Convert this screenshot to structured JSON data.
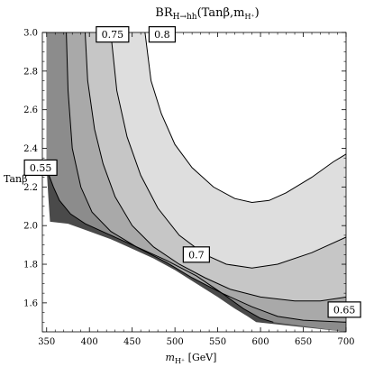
{
  "chart_data": {
    "type": "contour",
    "title_main": "BR",
    "title_sub": "H→hh",
    "title_args": "(Tanβ,m",
    "title_args_sub": "H⁺",
    "title_args_close": ")",
    "xlabel_main": "m",
    "xlabel_sub": "H⁺",
    "xlabel_unit": " [GeV]",
    "ylabel": "Tanβ",
    "xlim": [
      345,
      700
    ],
    "ylim": [
      1.45,
      3.0
    ],
    "x_ticks": [
      350,
      400,
      450,
      500,
      550,
      600,
      650,
      700
    ],
    "y_ticks": [
      1.6,
      1.8,
      2.0,
      2.2,
      2.4,
      2.6,
      2.8,
      3.0
    ],
    "x_tick_labels": [
      "350",
      "400",
      "450",
      "500",
      "550",
      "600",
      "650",
      "700"
    ],
    "y_tick_labels": [
      "1.6",
      "1.8",
      "2.0",
      "2.2",
      "2.4",
      "2.6",
      "2.8",
      "3.0"
    ],
    "contour_levels": [
      "0.55",
      "0.65",
      "0.7",
      "0.75",
      "0.8"
    ],
    "region_colors": {
      "darkest": "#4a4a4a",
      "dark": "#8c8c8c",
      "medium": "#a9a9a9",
      "light": "#c6c6c6",
      "lightest": "#dedede"
    },
    "contours": [
      {
        "level": "0.8",
        "points": [
          [
            465,
            3.0
          ],
          [
            472,
            2.75
          ],
          [
            484,
            2.58
          ],
          [
            500,
            2.42
          ],
          [
            520,
            2.3
          ],
          [
            545,
            2.2
          ],
          [
            570,
            2.14
          ],
          [
            590,
            2.12
          ],
          [
            610,
            2.13
          ],
          [
            630,
            2.17
          ],
          [
            660,
            2.25
          ],
          [
            685,
            2.33
          ],
          [
            700,
            2.37
          ]
        ]
      },
      {
        "level": "0.75",
        "points": [
          [
            425,
            3.0
          ],
          [
            432,
            2.7
          ],
          [
            444,
            2.46
          ],
          [
            460,
            2.26
          ],
          [
            480,
            2.09
          ],
          [
            505,
            1.95
          ],
          [
            535,
            1.85
          ],
          [
            560,
            1.8
          ],
          [
            590,
            1.78
          ],
          [
            620,
            1.8
          ],
          [
            660,
            1.86
          ],
          [
            700,
            1.94
          ]
        ]
      },
      {
        "level": "0.7",
        "points": [
          [
            395,
            3.0
          ],
          [
            398,
            2.75
          ],
          [
            406,
            2.5
          ],
          [
            416,
            2.32
          ],
          [
            430,
            2.15
          ],
          [
            450,
            2.0
          ],
          [
            475,
            1.89
          ],
          [
            505,
            1.8
          ],
          [
            535,
            1.73
          ],
          [
            565,
            1.67
          ],
          [
            600,
            1.63
          ],
          [
            640,
            1.61
          ],
          [
            670,
            1.61
          ],
          [
            700,
            1.63
          ]
        ]
      },
      {
        "level": "0.65",
        "points": [
          [
            373,
            3.0
          ],
          [
            375,
            2.7
          ],
          [
            380,
            2.4
          ],
          [
            390,
            2.2
          ],
          [
            403,
            2.07
          ],
          [
            425,
            1.97
          ],
          [
            455,
            1.89
          ],
          [
            490,
            1.81
          ],
          [
            520,
            1.73
          ],
          [
            555,
            1.65
          ],
          [
            590,
            1.58
          ],
          [
            620,
            1.53
          ],
          [
            650,
            1.51
          ],
          [
            700,
            1.5
          ]
        ]
      },
      {
        "level": "0.55",
        "points": [
          [
            352,
            2.27
          ],
          [
            358,
            2.2
          ],
          [
            365,
            2.13
          ],
          [
            378,
            2.06
          ],
          [
            395,
            2.01
          ],
          [
            420,
            1.96
          ],
          [
            450,
            1.9
          ],
          [
            490,
            1.82
          ],
          [
            525,
            1.74
          ],
          [
            555,
            1.65
          ],
          [
            580,
            1.57
          ],
          [
            600,
            1.52
          ],
          [
            615,
            1.5
          ]
        ]
      }
    ],
    "domain_edge": [
      [
        350,
        2.3
      ],
      [
        352,
        2.15
      ],
      [
        354,
        2.02
      ],
      [
        375,
        2.01
      ],
      [
        400,
        1.97
      ],
      [
        425,
        1.93
      ],
      [
        450,
        1.88
      ],
      [
        475,
        1.83
      ],
      [
        500,
        1.77
      ],
      [
        525,
        1.7
      ],
      [
        550,
        1.63
      ],
      [
        570,
        1.57
      ],
      [
        585,
        1.53
      ],
      [
        595,
        1.5
      ]
    ],
    "contour_labels": [
      {
        "text": "0.75",
        "x": 427,
        "y": 2.99
      },
      {
        "text": "0.8",
        "x": 485,
        "y": 2.99
      },
      {
        "text": "0.55",
        "x": 343,
        "y": 2.3
      },
      {
        "text": "0.7",
        "x": 525,
        "y": 1.85
      },
      {
        "text": "0.65",
        "x": 698,
        "y": 1.565
      }
    ]
  }
}
